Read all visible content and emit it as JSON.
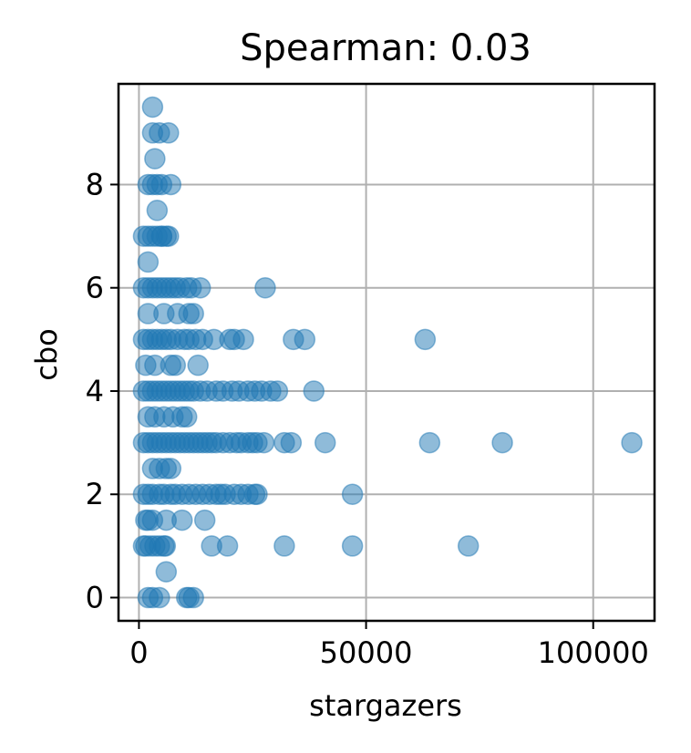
{
  "chart_data": {
    "type": "scatter",
    "title": "Spearman: 0.03",
    "xlabel": "stargazers",
    "ylabel": "cbo",
    "xlim": [
      -4500,
      113500
    ],
    "ylim": [
      -0.45,
      9.95
    ],
    "xticks": [
      0,
      50000,
      100000
    ],
    "xtick_labels": [
      "0",
      "50000",
      "100000"
    ],
    "yticks": [
      0,
      2,
      4,
      6,
      8
    ],
    "ytick_labels": [
      "0",
      "2",
      "4",
      "6",
      "8"
    ],
    "grid": true,
    "legend": "none",
    "point_color": "#1f77b4",
    "point_alpha": 0.5,
    "series": [
      {
        "x": [
          2000,
          3000,
          4500,
          10500,
          11000,
          12000,
          1000,
          1500,
          2500,
          3500,
          4500,
          5500,
          5800,
          16000,
          19500,
          32000,
          47000,
          72500,
          1000,
          2000,
          3000,
          4500,
          5500,
          7000,
          8000,
          9500,
          11000,
          12500,
          14000,
          15500,
          17000,
          18000,
          19000,
          21000,
          22500,
          24000,
          25500,
          26000,
          47000,
          1000,
          2000,
          3000,
          4000,
          5000,
          6000,
          7000,
          8000,
          9000,
          10000,
          11000,
          12000,
          13000,
          14000,
          15000,
          16000,
          17000,
          18500,
          20000,
          21500,
          22500,
          24000,
          25000,
          26000,
          27500,
          32000,
          33500,
          41000,
          64000,
          80000,
          108500,
          1000,
          2000,
          3000,
          4000,
          5000,
          6000,
          7000,
          8000,
          9000,
          10000,
          11000,
          12000,
          13500,
          15000,
          17000,
          18500,
          20500,
          22000,
          24000,
          25500,
          27000,
          29000,
          30500,
          38500,
          1000,
          2000,
          3000,
          4000,
          5000,
          6000,
          7000,
          8500,
          10000,
          11000,
          12500,
          14000,
          16500,
          20000,
          21000,
          23000,
          34000,
          36500,
          63000,
          1000,
          2000,
          3000,
          4000,
          5000,
          6000,
          7000,
          8000,
          9000,
          10500,
          11500,
          13500,
          27800,
          1000,
          2000,
          3000,
          4000,
          5000,
          6000,
          6500,
          2000,
          3000,
          4000,
          5000,
          7000,
          2000,
          3500,
          5500,
          7500,
          9500,
          10500,
          3000,
          4500,
          6000,
          7000,
          2000,
          3000,
          1500,
          6000,
          9500,
          14500,
          1500,
          3500,
          7000,
          8000,
          13000,
          2000,
          5500,
          8500,
          11000,
          12000,
          2000,
          4000,
          3500,
          6000,
          3000,
          4500,
          6500,
          3000,
          5000
        ],
        "y": [
          0,
          0,
          0,
          0,
          0,
          0,
          1,
          1,
          1,
          1,
          1,
          1,
          1,
          1,
          1,
          1,
          1,
          1,
          2,
          2,
          2,
          2,
          2,
          2,
          2,
          2,
          2,
          2,
          2,
          2,
          2,
          2,
          2,
          2,
          2,
          2,
          2,
          2,
          2,
          3,
          3,
          3,
          3,
          3,
          3,
          3,
          3,
          3,
          3,
          3,
          3,
          3,
          3,
          3,
          3,
          3,
          3,
          3,
          3,
          3,
          3,
          3,
          3,
          3,
          3,
          3,
          3,
          3,
          3,
          3,
          4,
          4,
          4,
          4,
          4,
          4,
          4,
          4,
          4,
          4,
          4,
          4,
          4,
          4,
          4,
          4,
          4,
          4,
          4,
          4,
          4,
          4,
          4,
          4,
          5,
          5,
          5,
          5,
          5,
          5,
          5,
          5,
          5,
          5,
          5,
          5,
          5,
          5,
          5,
          5,
          5,
          5,
          5,
          6,
          6,
          6,
          6,
          6,
          6,
          6,
          6,
          6,
          6,
          6,
          6,
          6,
          7,
          7,
          7,
          7,
          7,
          7,
          7,
          8,
          8,
          8,
          8,
          8,
          3.5,
          3.5,
          3.5,
          3.5,
          3.5,
          3.5,
          2.5,
          2.5,
          2.5,
          2.5,
          1.5,
          1.5,
          1.5,
          1.5,
          1.5,
          1.5,
          4.5,
          4.5,
          4.5,
          4.5,
          4.5,
          5.5,
          5.5,
          5.5,
          5.5,
          5.5,
          6.5,
          7.5,
          8.5,
          0.5,
          9,
          9,
          9,
          9.5,
          7
        ]
      }
    ]
  }
}
